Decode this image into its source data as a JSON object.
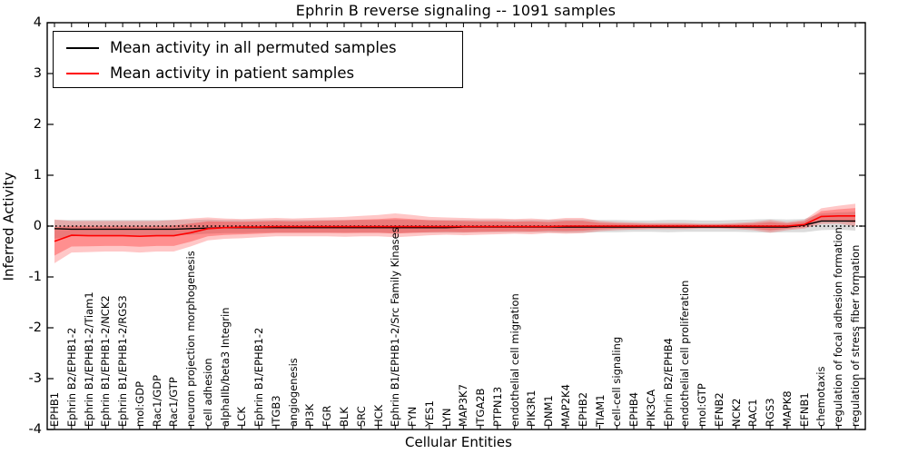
{
  "chart_data": {
    "type": "line",
    "title": "Ephrin B reverse signaling -- 1091 samples",
    "xlabel": "Cellular Entities",
    "ylabel": "Inferred Activity",
    "ylim": [
      -4,
      4
    ],
    "yticks": [
      4,
      3,
      2,
      1,
      0,
      -1,
      -2,
      -3,
      -4
    ],
    "grid": false,
    "legend_position": "upper left",
    "zero_reference": 0,
    "colors": {
      "permuted_line": "#000000",
      "permuted_band": "#bfbfbf",
      "patient_line": "#ff0000",
      "patient_band": "#ff0000",
      "frame": "#000000",
      "background": "#ffffff"
    },
    "categories": [
      "EPHB1",
      "Ephrin B2/EPHB1-2",
      "Ephrin B1/EPHB1-2/Tiam1",
      "Ephrin B1/EPHB1-2/NCK2",
      "Ephrin B1/EPHB1-2/RGS3",
      "mol:GDP",
      "Rac1/GDP",
      "Rac1/GTP",
      "neuron projection morphogenesis",
      "cell adhesion",
      "alphaIIb/beta3 Integrin",
      "LCK",
      "Ephrin B1/EPHB1-2",
      "ITGB3",
      "angiogenesis",
      "PI3K",
      "FGR",
      "BLK",
      "SRC",
      "HCK",
      "Ephrin B1/EPHB1-2/Src Family Kinases",
      "FYN",
      "YES1",
      "LYN",
      "MAP3K7",
      "ITGA2B",
      "PTPN13",
      "endothelial cell migration",
      "PIK3R1",
      "DNM1",
      "MAP2K4",
      "EPHB2",
      "TIAM1",
      "cell-cell signaling",
      "EPHB4",
      "PIK3CA",
      "Ephrin B2/EPHB4",
      "endothelial cell proliferation",
      "mol:GTP",
      "EFNB2",
      "NCK2",
      "RAC1",
      "RGS3",
      "MAPK8",
      "EFNB1",
      "chemotaxis",
      "regulation of focal adhesion formation",
      "regulation of stress fiber formation"
    ],
    "series": [
      {
        "name": "Mean activity in all permuted samples",
        "color": "#000000",
        "values": [
          -0.05,
          -0.06,
          -0.06,
          -0.06,
          -0.06,
          -0.06,
          -0.06,
          -0.06,
          -0.05,
          -0.04,
          -0.03,
          -0.03,
          -0.03,
          -0.03,
          -0.03,
          -0.03,
          -0.03,
          -0.03,
          -0.03,
          -0.03,
          -0.03,
          -0.03,
          -0.03,
          -0.03,
          -0.02,
          -0.02,
          -0.02,
          -0.02,
          -0.02,
          -0.02,
          -0.02,
          -0.02,
          -0.02,
          -0.02,
          -0.02,
          -0.02,
          -0.02,
          -0.02,
          -0.02,
          -0.02,
          -0.02,
          -0.02,
          -0.02,
          -0.02,
          0.02,
          0.1,
          0.1,
          0.1
        ],
        "band_lo": [
          -0.25,
          -0.2,
          -0.19,
          -0.18,
          -0.18,
          -0.18,
          -0.18,
          -0.18,
          -0.17,
          -0.15,
          -0.14,
          -0.14,
          -0.13,
          -0.13,
          -0.13,
          -0.13,
          -0.13,
          -0.13,
          -0.13,
          -0.13,
          -0.14,
          -0.13,
          -0.13,
          -0.13,
          -0.13,
          -0.12,
          -0.12,
          -0.12,
          -0.12,
          -0.12,
          -0.13,
          -0.13,
          -0.12,
          -0.12,
          -0.11,
          -0.11,
          -0.12,
          -0.11,
          -0.11,
          -0.11,
          -0.11,
          -0.12,
          -0.13,
          -0.12,
          -0.12,
          -0.08,
          -0.07,
          -0.09
        ],
        "band_hi": [
          0.12,
          0.12,
          0.12,
          0.12,
          0.12,
          0.12,
          0.12,
          0.12,
          0.12,
          0.13,
          0.12,
          0.12,
          0.12,
          0.12,
          0.12,
          0.12,
          0.12,
          0.12,
          0.12,
          0.12,
          0.13,
          0.12,
          0.12,
          0.12,
          0.12,
          0.12,
          0.12,
          0.12,
          0.12,
          0.12,
          0.13,
          0.13,
          0.12,
          0.12,
          0.11,
          0.11,
          0.12,
          0.12,
          0.11,
          0.11,
          0.12,
          0.13,
          0.14,
          0.13,
          0.14,
          0.25,
          0.27,
          0.28
        ]
      },
      {
        "name": "Mean activity in patient samples",
        "color": "#ff0000",
        "values": [
          -0.3,
          -0.18,
          -0.19,
          -0.19,
          -0.19,
          -0.2,
          -0.19,
          -0.19,
          -0.13,
          -0.05,
          -0.03,
          -0.02,
          -0.02,
          -0.01,
          -0.01,
          -0.01,
          -0.01,
          -0.01,
          -0.01,
          -0.01,
          -0.01,
          -0.01,
          -0.01,
          -0.01,
          -0.01,
          -0.01,
          -0.01,
          -0.01,
          -0.01,
          -0.01,
          0.0,
          0.0,
          0.0,
          0.0,
          0.0,
          0.0,
          0.0,
          0.0,
          0.0,
          0.0,
          0.0,
          0.0,
          0.0,
          0.0,
          0.03,
          0.19,
          0.2,
          0.2
        ],
        "band_lo": [
          -0.73,
          -0.52,
          -0.51,
          -0.5,
          -0.5,
          -0.52,
          -0.5,
          -0.5,
          -0.4,
          -0.28,
          -0.25,
          -0.24,
          -0.22,
          -0.2,
          -0.2,
          -0.2,
          -0.2,
          -0.21,
          -0.2,
          -0.2,
          -0.22,
          -0.2,
          -0.18,
          -0.17,
          -0.18,
          -0.17,
          -0.16,
          -0.15,
          -0.16,
          -0.14,
          -0.15,
          -0.14,
          -0.1,
          -0.08,
          -0.07,
          -0.06,
          -0.06,
          -0.06,
          -0.05,
          -0.05,
          -0.06,
          -0.08,
          -0.13,
          -0.08,
          -0.05,
          0.04,
          0.05,
          0.0
        ],
        "band_hi": [
          0.13,
          0.1,
          0.1,
          0.1,
          0.1,
          0.1,
          0.1,
          0.12,
          0.15,
          0.17,
          0.15,
          0.14,
          0.15,
          0.16,
          0.15,
          0.16,
          0.17,
          0.18,
          0.2,
          0.22,
          0.25,
          0.22,
          0.18,
          0.17,
          0.16,
          0.15,
          0.15,
          0.14,
          0.15,
          0.13,
          0.16,
          0.16,
          0.1,
          0.08,
          0.07,
          0.06,
          0.06,
          0.06,
          0.05,
          0.05,
          0.06,
          0.08,
          0.12,
          0.08,
          0.12,
          0.35,
          0.4,
          0.44
        ]
      }
    ]
  }
}
